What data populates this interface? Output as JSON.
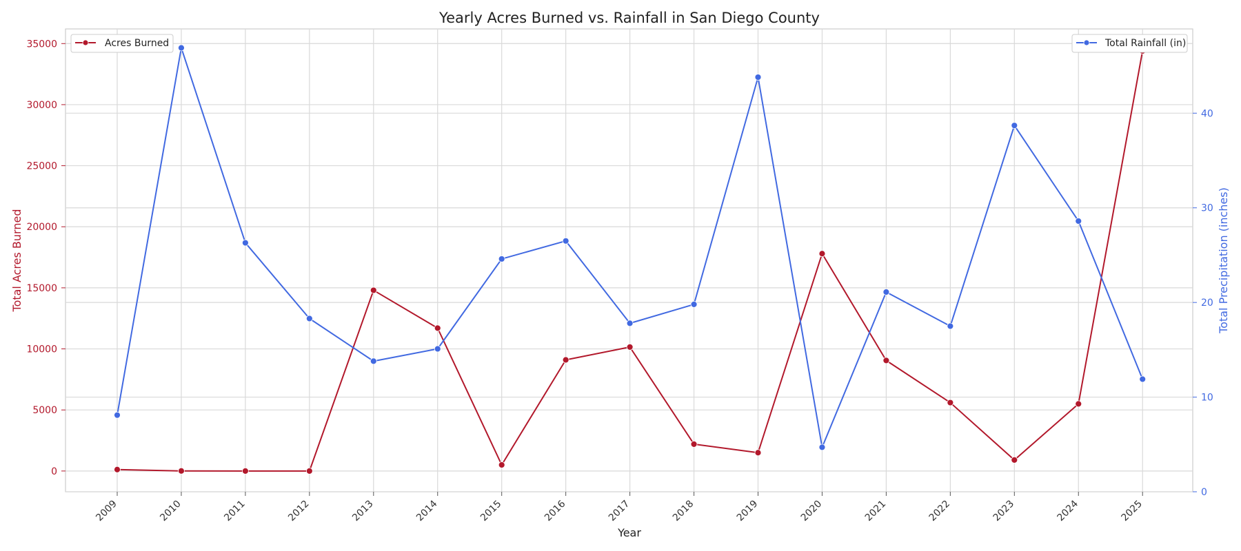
{
  "chart_data": {
    "type": "line",
    "title": "Yearly Acres Burned vs. Rainfall in San Diego County",
    "xlabel": "Year",
    "ylabel_left": "Total Acres Burned",
    "ylabel_right": "Total Precipitation (inches)",
    "categories": [
      "2009",
      "2010",
      "2011",
      "2012",
      "2013",
      "2014",
      "2015",
      "2016",
      "2017",
      "2018",
      "2019",
      "2020",
      "2021",
      "2022",
      "2023",
      "2024",
      "2025"
    ],
    "y_left_ticks": [
      0,
      5000,
      10000,
      15000,
      20000,
      25000,
      30000,
      35000
    ],
    "y_left_lim": [
      -1700,
      36200
    ],
    "y_right_ticks": [
      0,
      10,
      20,
      30,
      40
    ],
    "y_right_lim": [
      0,
      48.9
    ],
    "grid": true,
    "series": [
      {
        "name": "Acres Burned",
        "axis": "left",
        "color": "#b2182b",
        "values": [
          120,
          5,
          0,
          0,
          14800,
          11700,
          500,
          9100,
          10150,
          2200,
          1500,
          17800,
          9050,
          5600,
          900,
          5500,
          34400
        ]
      },
      {
        "name": "Total Rainfall (in)",
        "axis": "right",
        "color": "#4169e1",
        "values": [
          8.1,
          46.9,
          26.3,
          18.3,
          13.8,
          15.1,
          24.6,
          26.5,
          17.8,
          19.8,
          43.8,
          4.7,
          21.1,
          17.5,
          38.7,
          28.6,
          11.9
        ]
      }
    ],
    "legend": [
      {
        "label": "Acres Burned",
        "placement": "top-left"
      },
      {
        "label": "Total Rainfall (in)",
        "placement": "top-right"
      }
    ]
  }
}
